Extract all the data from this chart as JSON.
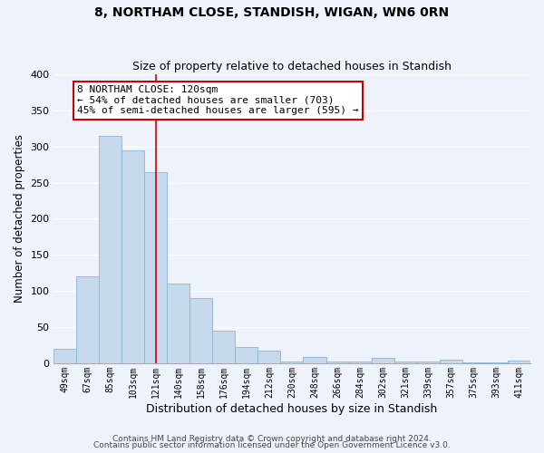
{
  "title": "8, NORTHAM CLOSE, STANDISH, WIGAN, WN6 0RN",
  "subtitle": "Size of property relative to detached houses in Standish",
  "xlabel": "Distribution of detached houses by size in Standish",
  "ylabel": "Number of detached properties",
  "bar_labels": [
    "49sqm",
    "67sqm",
    "85sqm",
    "103sqm",
    "121sqm",
    "140sqm",
    "158sqm",
    "176sqm",
    "194sqm",
    "212sqm",
    "230sqm",
    "248sqm",
    "266sqm",
    "284sqm",
    "302sqm",
    "321sqm",
    "339sqm",
    "357sqm",
    "375sqm",
    "393sqm",
    "411sqm"
  ],
  "bar_values": [
    20,
    120,
    315,
    295,
    265,
    110,
    90,
    45,
    22,
    17,
    3,
    9,
    3,
    3,
    8,
    2,
    2,
    5,
    1,
    1,
    4
  ],
  "bar_color": "#c5d8ec",
  "bar_edge_color": "#8ab4d4",
  "vline_x_idx": 4,
  "vline_color": "#cc0000",
  "annotation_text": "8 NORTHAM CLOSE: 120sqm\n← 54% of detached houses are smaller (703)\n45% of semi-detached houses are larger (595) →",
  "annotation_box_color": "#ffffff",
  "annotation_box_edge": "#cc0000",
  "ylim": [
    0,
    400
  ],
  "yticks": [
    0,
    50,
    100,
    150,
    200,
    250,
    300,
    350,
    400
  ],
  "footer_line1": "Contains HM Land Registry data © Crown copyright and database right 2024.",
  "footer_line2": "Contains public sector information licensed under the Open Government Licence v3.0.",
  "background_color": "#eef3fb",
  "grid_color": "#ffffff",
  "title_fontsize": 10,
  "subtitle_fontsize": 9
}
